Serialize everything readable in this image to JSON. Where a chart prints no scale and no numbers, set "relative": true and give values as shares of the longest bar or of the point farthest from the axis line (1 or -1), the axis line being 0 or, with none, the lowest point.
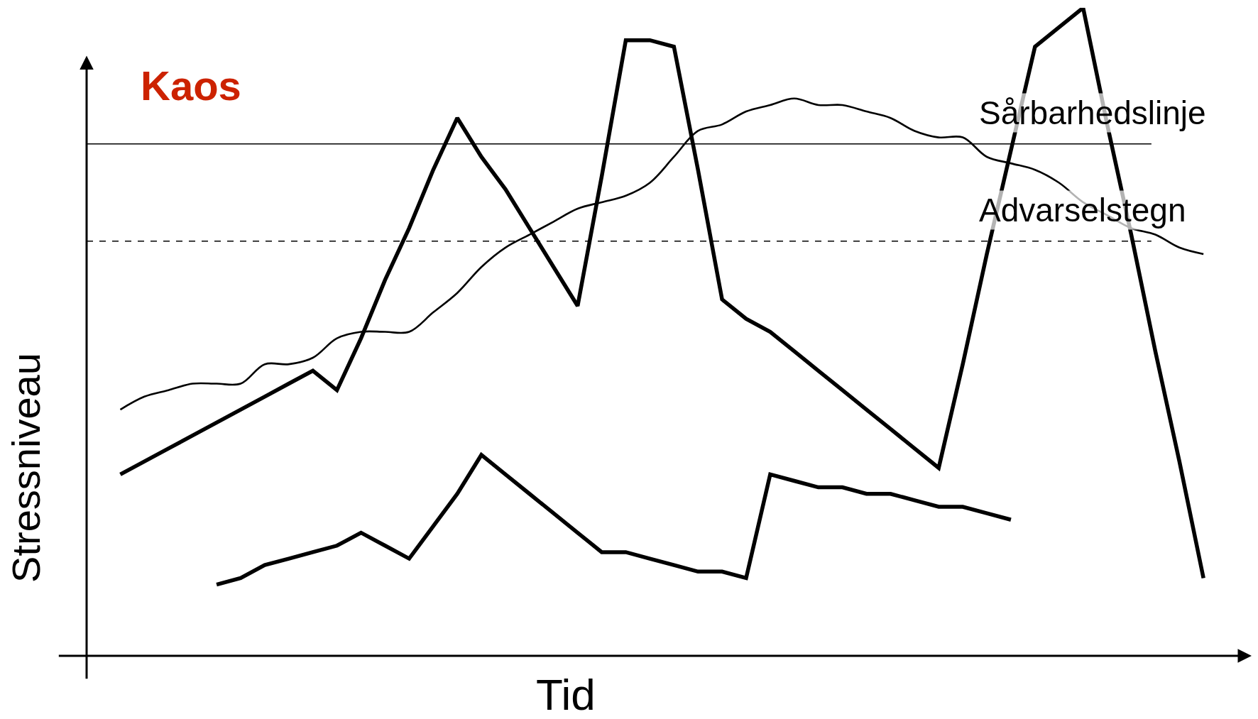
{
  "chart_data": {
    "type": "line",
    "relative": true,
    "xlabel": "Tid",
    "ylabel": "Stressniveau",
    "marker": "none",
    "tick_labels": false,
    "annotations": [
      "Kaos"
    ],
    "categories": [
      null,
      null,
      null,
      null,
      null,
      null,
      null,
      null,
      null,
      null,
      null,
      null,
      null,
      null,
      null,
      null,
      null,
      null,
      null,
      null,
      null,
      null,
      null,
      null,
      null,
      null,
      null,
      null,
      null,
      null,
      null,
      null,
      null,
      null,
      null,
      null,
      null,
      null,
      null,
      null,
      null,
      null,
      null,
      null,
      null,
      null
    ],
    "series": [
      {
        "color": "#000000",
        "values": [
          0.28,
          0.3,
          0.32,
          0.34,
          0.36,
          0.38,
          0.4,
          0.42,
          0.44,
          0.41,
          0.49,
          0.58,
          0.66,
          0.75,
          0.83,
          0.77,
          0.72,
          0.66,
          0.6,
          0.54,
          0.74,
          0.95,
          0.95,
          0.94,
          0.75,
          0.55,
          0.52,
          0.5,
          0.47,
          0.44,
          0.41,
          0.38,
          0.35,
          0.32,
          0.29,
          0.45,
          0.62,
          0.78,
          0.94,
          0.97,
          1,
          0.82,
          0.65,
          0.47,
          0.3,
          0.12
        ]
      },
      {
        "color": "#000000",
        "values": [
          null,
          null,
          null,
          null,
          0.11,
          0.12,
          0.14,
          0.15,
          0.16,
          0.17,
          0.19,
          0.17,
          0.15,
          0.2,
          0.25,
          0.31,
          0.28,
          0.25,
          0.22,
          0.19,
          0.16,
          0.16,
          0.15,
          0.14,
          0.13,
          0.13,
          0.12,
          0.28,
          0.27,
          0.26,
          0.26,
          0.25,
          0.25,
          0.24,
          0.23,
          0.23,
          0.22,
          0.21,
          null,
          null,
          null,
          null,
          null,
          null,
          null,
          null
        ]
      },
      {
        "color": "#000000",
        "values": [
          0.38,
          0.4,
          0.41,
          0.42,
          0.42,
          0.42,
          0.45,
          0.45,
          0.46,
          0.49,
          0.5,
          0.5,
          0.5,
          0.53,
          0.56,
          0.6,
          0.63,
          0.65,
          0.67,
          0.69,
          0.7,
          0.71,
          0.73,
          0.77,
          0.81,
          0.82,
          0.84,
          0.85,
          0.86,
          0.85,
          0.85,
          0.84,
          0.83,
          0.81,
          0.8,
          0.8,
          0.77,
          0.76,
          0.75,
          0.73,
          0.7,
          0.68,
          0.66,
          0.65,
          0.63,
          0.62
        ]
      }
    ],
    "ref_lines": [
      {
        "axis": "y",
        "value": 0.79,
        "label": "Sårbarhedslinje",
        "line_style": "solid",
        "color": "#000000"
      },
      {
        "axis": "y",
        "value": 0.64,
        "label": "Advarselstegn",
        "line_style": "dashed",
        "color": "#000000"
      }
    ]
  }
}
